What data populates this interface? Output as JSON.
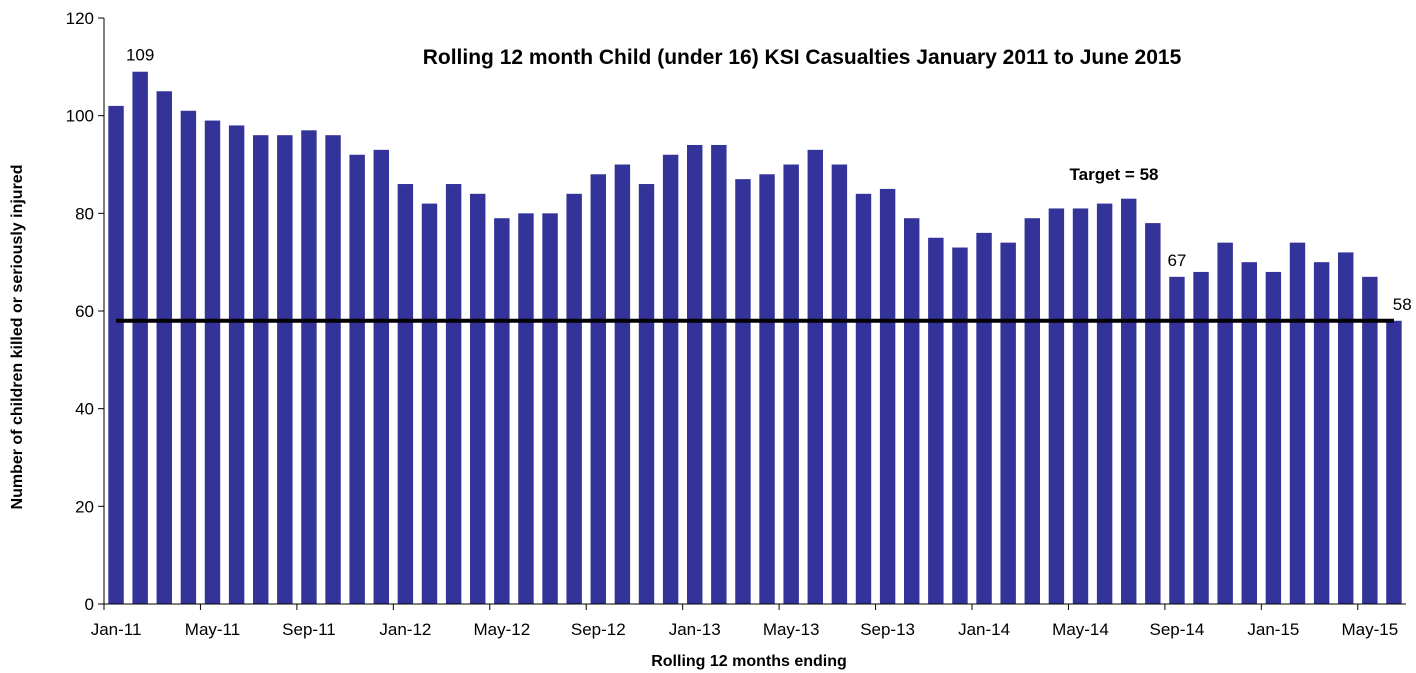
{
  "colors": {
    "bar": "#333399",
    "target_line": "#000000",
    "axis": "#000000"
  },
  "chart_data": {
    "type": "bar",
    "title": "Rolling 12 month Child (under 16) KSI Casualties January 2011 to June 2015",
    "xlabel": "Rolling 12 months ending",
    "ylabel": "Number of children killed or seriously injured",
    "ylim": [
      0,
      120
    ],
    "yticks": [
      0,
      20,
      40,
      60,
      80,
      100,
      120
    ],
    "grid": false,
    "categories": [
      "Jan-11",
      "Feb-11",
      "Mar-11",
      "Apr-11",
      "May-11",
      "Jun-11",
      "Jul-11",
      "Aug-11",
      "Sep-11",
      "Oct-11",
      "Nov-11",
      "Dec-11",
      "Jan-12",
      "Feb-12",
      "Mar-12",
      "Apr-12",
      "May-12",
      "Jun-12",
      "Jul-12",
      "Aug-12",
      "Sep-12",
      "Oct-12",
      "Nov-12",
      "Dec-12",
      "Jan-13",
      "Feb-13",
      "Mar-13",
      "Apr-13",
      "May-13",
      "Jun-13",
      "Jul-13",
      "Aug-13",
      "Sep-13",
      "Oct-13",
      "Nov-13",
      "Dec-13",
      "Jan-14",
      "Feb-14",
      "Mar-14",
      "Apr-14",
      "May-14",
      "Jun-14",
      "Jul-14",
      "Aug-14",
      "Sep-14",
      "Oct-14",
      "Nov-14",
      "Dec-14",
      "Jan-15",
      "Feb-15",
      "Mar-15",
      "Apr-15",
      "May-15",
      "Jun-15"
    ],
    "xtick_labels": [
      "Jan-11",
      "May-11",
      "Sep-11",
      "Jan-12",
      "May-12",
      "Sep-12",
      "Jan-13",
      "May-13",
      "Sep-13",
      "Jan-14",
      "May-14",
      "Sep-14",
      "Jan-15",
      "May-15"
    ],
    "values": [
      102,
      109,
      105,
      101,
      99,
      98,
      96,
      96,
      97,
      96,
      92,
      93,
      86,
      82,
      86,
      84,
      79,
      80,
      80,
      84,
      88,
      90,
      86,
      92,
      94,
      94,
      87,
      88,
      90,
      93,
      90,
      84,
      85,
      79,
      75,
      73,
      76,
      74,
      79,
      81,
      81,
      82,
      83,
      78,
      67,
      68,
      74,
      70,
      68,
      74,
      70,
      72,
      67,
      58
    ],
    "data_labels": [
      {
        "index": 1,
        "text": "109"
      },
      {
        "index": 44,
        "text": "67"
      },
      {
        "index": 53,
        "text": "58"
      }
    ],
    "target": {
      "value": 58,
      "label": "Target = 58"
    }
  }
}
